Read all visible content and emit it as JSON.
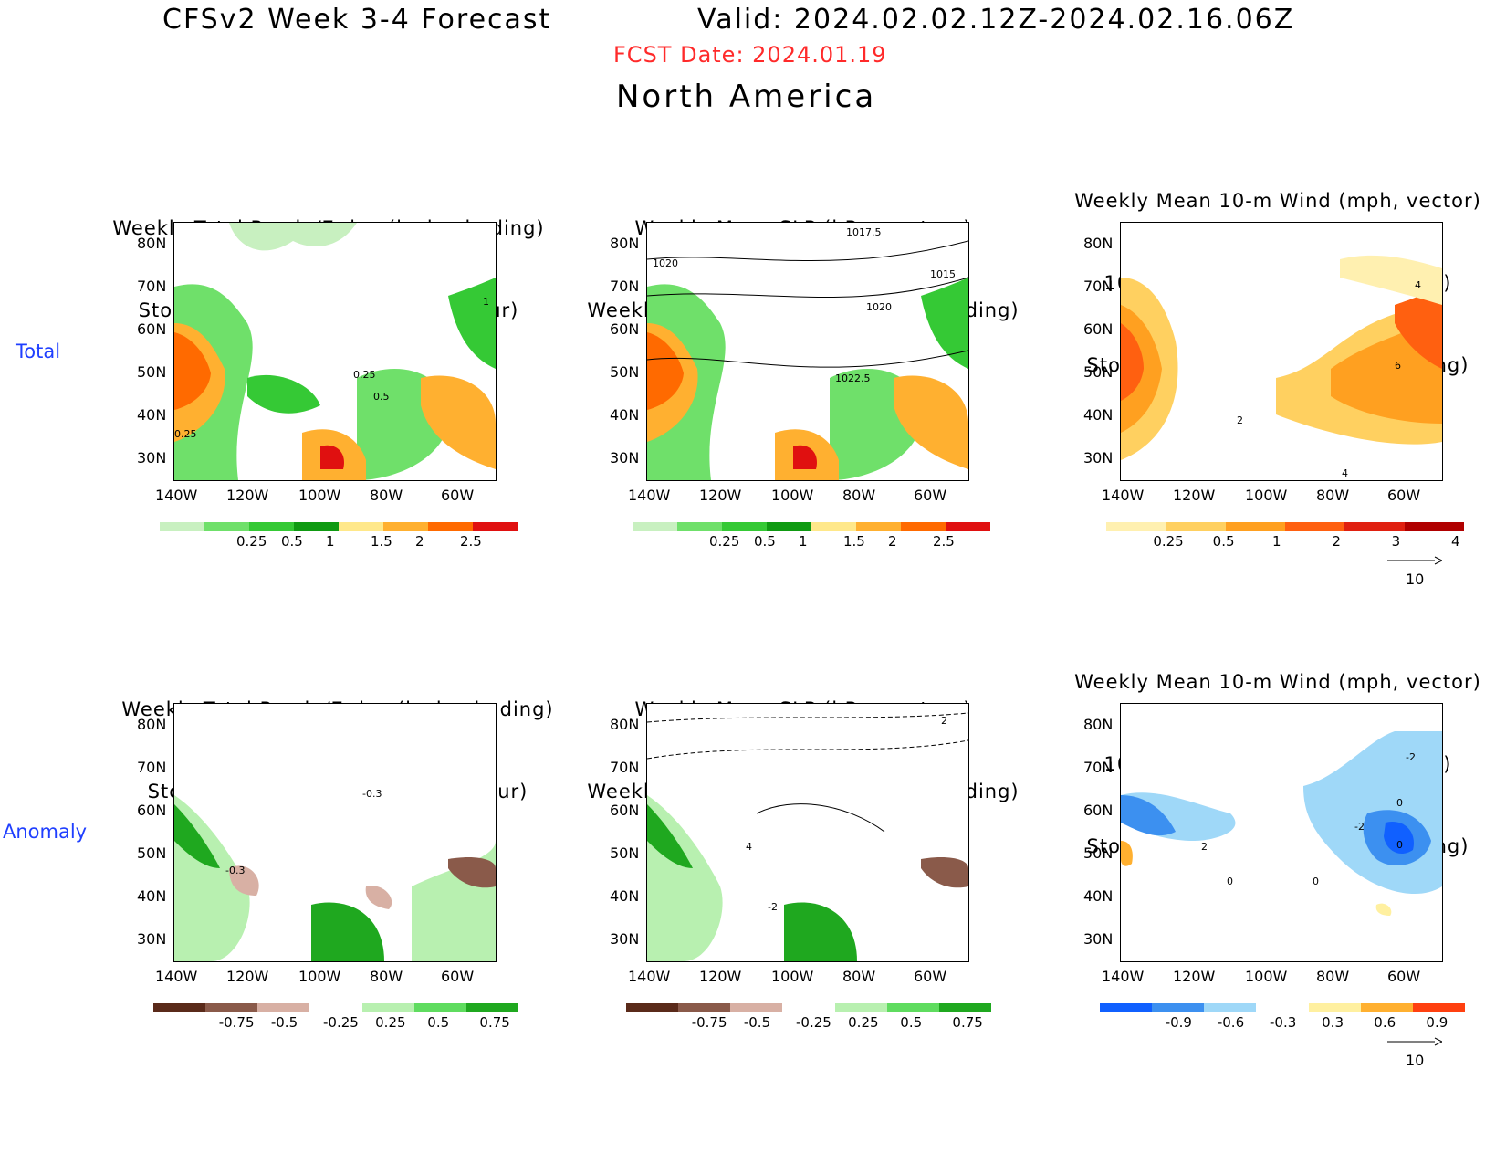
{
  "header": {
    "model": "CFSv2 Week 3-4 Forecast",
    "valid": "Valid: 2024.02.02.12Z-2024.02.16.06Z",
    "fcst_date": "FCST Date: 2024.01.19",
    "region": "North America"
  },
  "row_labels": {
    "total": "Total",
    "anomaly": "Anomaly"
  },
  "panel_titles": {
    "precip_storm": [
      "Weekly Total Precip/7-day (inch, shading)",
      "Storm Track Density/7-day (contour)"
    ],
    "slp_precip": [
      "Weekly Mean SLP (hPa, contour)",
      "Weekly Total Precip/7-day (inch, shading)"
    ],
    "wind_storm": [
      "Weekly Mean 10-m Wind (mph, vector)",
      "10-m Wind Speed (mph, contour)",
      "Storm Track Density/7-day (shading)"
    ]
  },
  "axes": {
    "lat_ticks": [
      "80N",
      "70N",
      "60N",
      "50N",
      "40N",
      "30N"
    ],
    "lon_ticks": [
      "140W",
      "120W",
      "100W",
      "80W",
      "60W"
    ]
  },
  "colorbars": {
    "precip_total": [
      "0.25",
      "0.5",
      "1",
      "1.5",
      "2",
      "2.5"
    ],
    "storm_total": [
      "0.25",
      "0.5",
      "1",
      "2",
      "3",
      "4"
    ],
    "precip_anom": [
      "-0.75",
      "-0.5",
      "-0.25",
      "0.25",
      "0.5",
      "0.75"
    ],
    "storm_anom": [
      "-0.9",
      "-0.6",
      "-0.3",
      "0.3",
      "0.6",
      "0.9"
    ]
  },
  "colors": {
    "precip_scale": [
      "#c8f0c0",
      "#6fe06a",
      "#35c935",
      "#0f9a12",
      "#ffe88a",
      "#ffb030",
      "#ff6a00",
      "#e01010"
    ],
    "anom_precip_scale": [
      "#5a2a1a",
      "#8a5a4a",
      "#d8b0a4",
      "#ffffff",
      "#b8f0b0",
      "#5fdc5f",
      "#1fa81f"
    ],
    "storm_scale": [
      "#fff0b0",
      "#ffd060",
      "#ffa020",
      "#ff6010",
      "#e02010",
      "#b00000"
    ],
    "storm_anom_scale": [
      "#1060ff",
      "#3c90f0",
      "#9fd8f8",
      "#ffffff",
      "#fff0a0",
      "#ffb030",
      "#ff4010"
    ],
    "vector": "#5a5aff"
  },
  "vector_reference": {
    "total": "10",
    "anomaly": "10"
  },
  "contour_labels": {
    "p1": [
      "0.25",
      "0.5",
      "0.25",
      "1"
    ],
    "p2": [
      "1017.5",
      "1020",
      "1015",
      "1020",
      "1022.5"
    ],
    "p3": [
      "4",
      "6",
      "2",
      "4"
    ],
    "p4": [
      "-0.3",
      "-0.3"
    ],
    "p5": [
      "2",
      "4",
      "-2"
    ],
    "p6": [
      "-2",
      "0",
      "-2",
      "0",
      "2",
      "0",
      "0"
    ]
  }
}
